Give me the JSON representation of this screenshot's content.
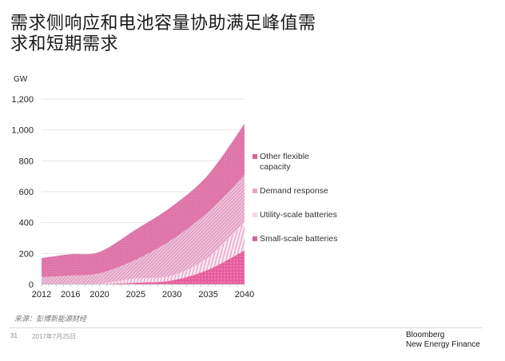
{
  "title": "需求侧响应和电池容量协助满足峰值需求和短期需求",
  "watermark": "",
  "source": "来源：彭博新能源财经",
  "footer": {
    "page_number": "31",
    "date": "2017年7月25日",
    "logo_line1": "Bloomberg",
    "logo_line2": "New Energy Finance"
  },
  "colors": {
    "other_flexible": "#e07aab",
    "demand_response": "#eab3cf",
    "utility_batteries": "#f6dbe8",
    "small_batteries": "#e85c9d",
    "grid": "#e6e6e6"
  },
  "chart_data": {
    "type": "area",
    "stacked": true,
    "title": "",
    "xlabel": "",
    "ylabel": "GW",
    "x": [
      2012,
      2016,
      2020,
      2025,
      2030,
      2035,
      2040
    ],
    "xticks": [
      "2012",
      "2016",
      "2020",
      "2025",
      "2030",
      "2035",
      "2040"
    ],
    "xlim": [
      2012,
      2040
    ],
    "ylim": [
      0,
      1200
    ],
    "yticks": [
      "0",
      "200",
      "400",
      "600",
      "800",
      "1,000",
      "1,200"
    ],
    "ytick_values": [
      0,
      200,
      400,
      600,
      800,
      1000,
      1200
    ],
    "grid": true,
    "legend_position": "right",
    "series": [
      {
        "name": "Small-scale batteries",
        "legend_label": "Small-scale batteries",
        "values": [
          0,
          0,
          2,
          10,
          25,
          95,
          220
        ]
      },
      {
        "name": "Utility-scale batteries",
        "legend_label": "Utility-scale batteries",
        "values": [
          0,
          2,
          3,
          28,
          32,
          80,
          180
        ]
      },
      {
        "name": "Demand response",
        "legend_label": "Demand response",
        "values": [
          47,
          55,
          67,
          122,
          233,
          295,
          310
        ]
      },
      {
        "name": "Other flexible capacity",
        "legend_label": "Other flexible capacity",
        "values": [
          123,
          138,
          138,
          195,
          215,
          240,
          330
        ]
      }
    ]
  }
}
